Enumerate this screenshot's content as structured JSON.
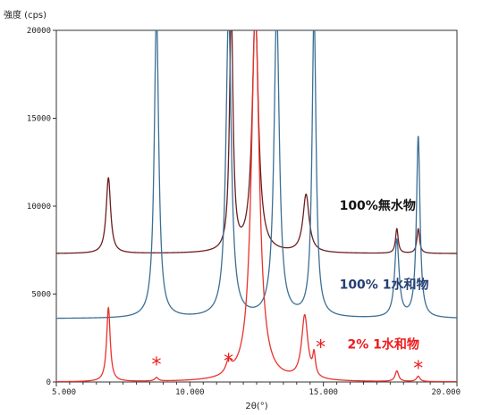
{
  "chart_data": {
    "type": "line",
    "ylabel": "強度 (cps)",
    "xlabel": "2θ(°)",
    "xlim": [
      5,
      20
    ],
    "ylim": [
      0,
      20000
    ],
    "x_ticks": [
      "5.000",
      "10.000",
      "15.000",
      "20.000"
    ],
    "y_ticks": [
      "0",
      "5000",
      "10000",
      "15000",
      "20000"
    ],
    "grid": false,
    "series": [
      {
        "name": "100%無水物",
        "color": "#6b1f1f",
        "label_color": "#111111",
        "baseline": 7300,
        "peaks": [
          {
            "x": 6.95,
            "y": 11600,
            "w": 0.1
          },
          {
            "x": 11.55,
            "y": 21000,
            "w": 0.08
          },
          {
            "x": 12.45,
            "y": 21000,
            "w": 0.14
          },
          {
            "x": 14.35,
            "y": 10600,
            "w": 0.14
          },
          {
            "x": 17.75,
            "y": 8700,
            "w": 0.06
          },
          {
            "x": 18.55,
            "y": 8700,
            "w": 0.06
          }
        ]
      },
      {
        "name": "100% 1水和物",
        "color": "#3d6f95",
        "label_color": "#243f73",
        "baseline": 3600,
        "peaks": [
          {
            "x": 8.75,
            "y": 21000,
            "w": 0.1
          },
          {
            "x": 11.45,
            "y": 21000,
            "w": 0.12
          },
          {
            "x": 13.25,
            "y": 21000,
            "w": 0.12
          },
          {
            "x": 14.65,
            "y": 21000,
            "w": 0.09
          },
          {
            "x": 17.75,
            "y": 8000,
            "w": 0.1
          },
          {
            "x": 18.55,
            "y": 13900,
            "w": 0.08
          }
        ]
      },
      {
        "name": "2% 1水和物",
        "color": "#e8322d",
        "label_color": "#ee1b1b",
        "baseline": 0,
        "peaks": [
          {
            "x": 6.95,
            "y": 4200,
            "w": 0.08
          },
          {
            "x": 8.75,
            "y": 200,
            "w": 0.08
          },
          {
            "x": 11.45,
            "y": 700,
            "w": 0.12
          },
          {
            "x": 12.45,
            "y": 21000,
            "w": 0.18
          },
          {
            "x": 14.3,
            "y": 3600,
            "w": 0.14
          },
          {
            "x": 14.65,
            "y": 1200,
            "w": 0.06
          },
          {
            "x": 17.75,
            "y": 600,
            "w": 0.08
          },
          {
            "x": 18.55,
            "y": 300,
            "w": 0.08
          }
        ]
      }
    ],
    "annotations": [
      {
        "text": "*",
        "x": 8.75,
        "y": 500,
        "color": "#ee1b1b"
      },
      {
        "text": "*",
        "x": 11.45,
        "y": 700,
        "color": "#ee1b1b"
      },
      {
        "text": "*",
        "x": 14.9,
        "y": 1500,
        "color": "#ee1b1b"
      },
      {
        "text": "*",
        "x": 18.55,
        "y": 300,
        "color": "#ee1b1b"
      }
    ]
  }
}
